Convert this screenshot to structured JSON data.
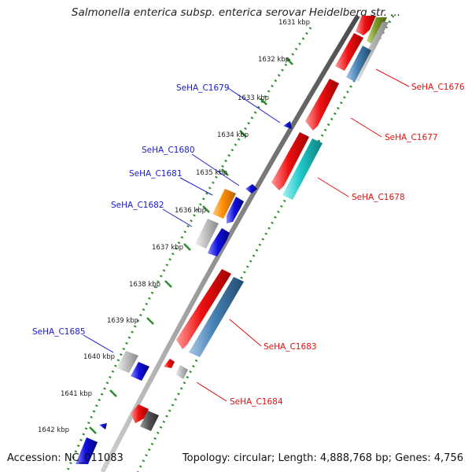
{
  "title": "Salmonella enterica subsp. enterica serovar Heidelberg str. ...",
  "footer": {
    "accession": "Accession: NC_011083",
    "topology": "Topology: circular; Length: 4,888,768 bp; Genes: 4,756"
  },
  "colors": {
    "backbone": "#8a8a8a",
    "tick": "#2e8b2e",
    "label_blue": "#1a1acc",
    "label_red": "#dd1111",
    "red": "#ee1111",
    "blue": "#1010dd",
    "steel_blue": "#4682b4",
    "cyan": "#20c8c8",
    "orange": "#ff8c00",
    "light_gray": "#c0c0c0",
    "dark_gray": "#555555",
    "olive": "#7a9a2a"
  },
  "ruler": {
    "unit": "kbp",
    "ticks": [
      {
        "kbp": 1631,
        "label": "1631 kbp"
      },
      {
        "kbp": 1632,
        "label": "1632 kbp"
      },
      {
        "kbp": 1633,
        "label": "1633 kbp"
      },
      {
        "kbp": 1634,
        "label": "1634 kbp"
      },
      {
        "kbp": 1635,
        "label": "1635 kbp"
      },
      {
        "kbp": 1636,
        "label": "1636 kbp"
      },
      {
        "kbp": 1637,
        "label": "1637 kbp"
      },
      {
        "kbp": 1638,
        "label": "1638 kbp"
      },
      {
        "kbp": 1639,
        "label": "1639 kbp"
      },
      {
        "kbp": 1640,
        "label": "1640 kbp"
      },
      {
        "kbp": 1641,
        "label": "1641 kbp"
      },
      {
        "kbp": 1642,
        "label": "1642 kbp"
      }
    ]
  },
  "gene_labels": {
    "left": [
      "SeHA_C1679",
      "SeHA_C1680",
      "SeHA_C1681",
      "SeHA_C1682",
      "SeHA_C1685"
    ],
    "right": [
      "SeHA_C1676",
      "SeHA_C1677",
      "SeHA_C1678",
      "SeHA_C1683",
      "SeHA_C1684"
    ]
  }
}
